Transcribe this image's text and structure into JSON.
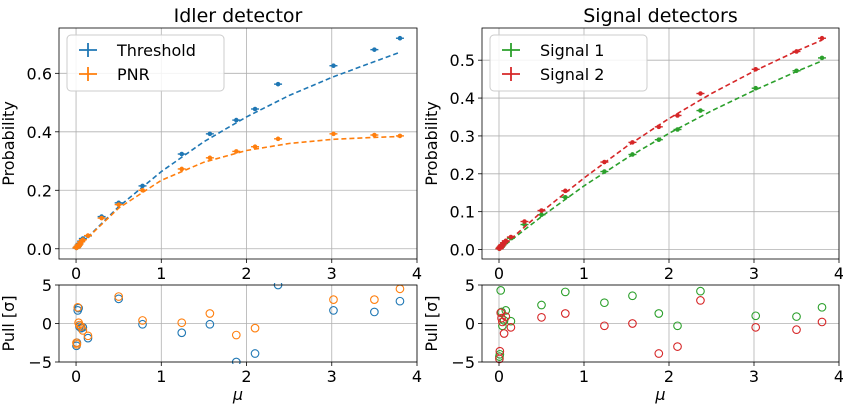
{
  "chart_data": [
    {
      "type": "scatter",
      "panel": "main",
      "title": "Idler detector",
      "xlabel": "",
      "ylabel": "Probability",
      "xlim": [
        -0.2,
        4.0
      ],
      "ylim": [
        -0.035,
        0.755
      ],
      "xticks": [
        0,
        1,
        2,
        3,
        4
      ],
      "yticks": [
        0.0,
        0.2,
        0.4,
        0.6
      ],
      "ytick_labels": [
        "0.0",
        "0.2",
        "0.4",
        "0.6"
      ],
      "grid": true,
      "legend_position": "top-left",
      "series": [
        {
          "name": "Threshold",
          "color": "#1f77b4",
          "x": [
            0.005,
            0.01,
            0.02,
            0.03,
            0.04,
            0.06,
            0.08,
            0.14,
            0.3,
            0.5,
            0.78,
            1.24,
            1.57,
            1.88,
            2.1,
            2.37,
            3.02,
            3.5,
            3.8
          ],
          "y": [
            0.003,
            0.005,
            0.008,
            0.013,
            0.018,
            0.026,
            0.035,
            0.044,
            0.11,
            0.157,
            0.215,
            0.324,
            0.393,
            0.44,
            0.478,
            0.563,
            0.626,
            0.681,
            0.72
          ],
          "fit": [
            [
              0,
              0
            ],
            [
              0.5,
              0.144
            ],
            [
              1,
              0.264
            ],
            [
              1.5,
              0.366
            ],
            [
              2,
              0.451
            ],
            [
              2.5,
              0.524
            ],
            [
              3,
              0.586
            ],
            [
              3.5,
              0.64
            ],
            [
              3.8,
              0.672
            ]
          ]
        },
        {
          "name": "PNR",
          "color": "#ff7f0e",
          "x": [
            0.005,
            0.01,
            0.02,
            0.03,
            0.04,
            0.06,
            0.08,
            0.14,
            0.3,
            0.5,
            0.78,
            1.24,
            1.57,
            1.88,
            2.1,
            2.37,
            3.02,
            3.5,
            3.8
          ],
          "y": [
            0.003,
            0.005,
            0.008,
            0.012,
            0.016,
            0.024,
            0.031,
            0.045,
            0.105,
            0.151,
            0.2,
            0.273,
            0.311,
            0.333,
            0.349,
            0.376,
            0.393,
            0.389,
            0.386
          ],
          "fit": [
            [
              0,
              0
            ],
            [
              0.5,
              0.139
            ],
            [
              1,
              0.234
            ],
            [
              1.5,
              0.296
            ],
            [
              2,
              0.336
            ],
            [
              2.5,
              0.36
            ],
            [
              3,
              0.374
            ],
            [
              3.5,
              0.381
            ],
            [
              3.8,
              0.384
            ]
          ]
        }
      ]
    },
    {
      "type": "scatter",
      "panel": "main",
      "title": "Signal detectors",
      "xlabel": "",
      "ylabel": "Probability",
      "xlim": [
        -0.2,
        4.0
      ],
      "ylim": [
        -0.025,
        0.585
      ],
      "xticks": [
        0,
        1,
        2,
        3,
        4
      ],
      "yticks": [
        0.0,
        0.1,
        0.2,
        0.3,
        0.4,
        0.5
      ],
      "ytick_labels": [
        "0.0",
        "0.1",
        "0.2",
        "0.3",
        "0.4",
        "0.5"
      ],
      "grid": true,
      "legend_position": "top-left",
      "series": [
        {
          "name": "Signal 1",
          "color": "#2ca02c",
          "x": [
            0.005,
            0.01,
            0.02,
            0.03,
            0.04,
            0.06,
            0.08,
            0.14,
            0.3,
            0.5,
            0.78,
            1.24,
            1.57,
            1.88,
            2.1,
            2.37,
            3.02,
            3.5,
            3.8
          ],
          "y": [
            0.002,
            0.004,
            0.006,
            0.009,
            0.012,
            0.016,
            0.02,
            0.03,
            0.066,
            0.092,
            0.138,
            0.206,
            0.251,
            0.29,
            0.317,
            0.367,
            0.426,
            0.472,
            0.506
          ],
          "fit": [
            [
              0,
              0
            ],
            [
              0.5,
              0.087
            ],
            [
              1,
              0.168
            ],
            [
              1.5,
              0.241
            ],
            [
              2,
              0.307
            ],
            [
              2.5,
              0.366
            ],
            [
              3,
              0.42
            ],
            [
              3.5,
              0.47
            ],
            [
              3.8,
              0.498
            ]
          ]
        },
        {
          "name": "Signal 2",
          "color": "#d62728",
          "x": [
            0.005,
            0.01,
            0.02,
            0.03,
            0.04,
            0.06,
            0.08,
            0.14,
            0.3,
            0.5,
            0.78,
            1.24,
            1.57,
            1.88,
            2.1,
            2.37,
            3.02,
            3.5,
            3.8
          ],
          "y": [
            0.002,
            0.004,
            0.007,
            0.01,
            0.013,
            0.018,
            0.023,
            0.033,
            0.074,
            0.103,
            0.155,
            0.231,
            0.283,
            0.324,
            0.354,
            0.412,
            0.476,
            0.523,
            0.558
          ],
          "fit": [
            [
              0,
              0
            ],
            [
              0.5,
              0.099
            ],
            [
              1,
              0.189
            ],
            [
              1.5,
              0.272
            ],
            [
              2,
              0.346
            ],
            [
              2.5,
              0.412
            ],
            [
              3,
              0.471
            ],
            [
              3.5,
              0.524
            ],
            [
              3.8,
              0.553
            ]
          ]
        }
      ]
    },
    {
      "type": "scatter",
      "panel": "residual",
      "title": "",
      "xlabel": "μ",
      "ylabel": "Pull [σ]",
      "xlim": [
        -0.2,
        4.0
      ],
      "ylim": [
        -5,
        5
      ],
      "xticks": [
        0,
        1,
        2,
        3,
        4
      ],
      "yticks": [
        -5,
        0,
        5
      ],
      "ytick_labels": [
        "−5",
        "0",
        "5"
      ],
      "grid": true,
      "series": [
        {
          "name": "Threshold",
          "color": "#1f77b4",
          "x": [
            0.005,
            0.01,
            0.02,
            0.03,
            0.04,
            0.06,
            0.08,
            0.14,
            0.5,
            0.78,
            1.24,
            1.57,
            1.88,
            2.1,
            2.37,
            3.02,
            3.5,
            3.8
          ],
          "y": [
            -2.9,
            -2.5,
            1.7,
            2.0,
            -0.4,
            -0.6,
            -0.5,
            -1.9,
            3.2,
            -0.1,
            -1.2,
            -0.1,
            -5.0,
            -3.9,
            5.0,
            1.7,
            1.5,
            2.9
          ]
        },
        {
          "name": "PNR",
          "color": "#ff7f0e",
          "x": [
            0.005,
            0.01,
            0.02,
            0.03,
            0.04,
            0.06,
            0.08,
            0.14,
            0.5,
            0.78,
            1.24,
            1.57,
            1.88,
            2.1,
            3.02,
            3.5,
            3.8
          ],
          "y": [
            -2.5,
            -2.7,
            2.1,
            0.1,
            -0.2,
            -0.4,
            -0.9,
            -1.6,
            3.5,
            0.4,
            0.1,
            1.3,
            -1.5,
            -0.6,
            3.1,
            3.1,
            4.5
          ]
        }
      ]
    },
    {
      "type": "scatter",
      "panel": "residual",
      "title": "",
      "xlabel": "μ",
      "ylabel": "Pull [σ]",
      "xlim": [
        -0.2,
        4.0
      ],
      "ylim": [
        -5,
        5
      ],
      "xticks": [
        0,
        1,
        2,
        3,
        4
      ],
      "yticks": [
        -5,
        0,
        5
      ],
      "ytick_labels": [
        "−5",
        "0",
        "5"
      ],
      "grid": true,
      "series": [
        {
          "name": "Signal 1",
          "color": "#2ca02c",
          "x": [
            0.005,
            0.01,
            0.02,
            0.03,
            0.04,
            0.06,
            0.08,
            0.14,
            0.5,
            0.78,
            1.24,
            1.57,
            1.88,
            2.1,
            2.37,
            3.02,
            3.5,
            3.8
          ],
          "y": [
            -4.3,
            -4.0,
            4.3,
            1.5,
            -0.3,
            0.4,
            1.7,
            0.3,
            2.4,
            4.1,
            2.7,
            3.6,
            1.3,
            -0.3,
            4.2,
            1.0,
            0.9,
            2.1
          ]
        },
        {
          "name": "Signal 2",
          "color": "#d62728",
          "x": [
            0.005,
            0.01,
            0.02,
            0.03,
            0.04,
            0.06,
            0.08,
            0.14,
            0.5,
            0.78,
            1.24,
            1.57,
            1.88,
            2.1,
            2.37,
            3.02,
            3.5,
            3.8
          ],
          "y": [
            -4.6,
            -3.6,
            1.4,
            0.7,
            0.2,
            -1.3,
            0.9,
            -0.5,
            0.8,
            1.3,
            -0.3,
            0.0,
            -3.9,
            -3.0,
            3.0,
            -0.5,
            -0.8,
            0.2
          ]
        }
      ]
    }
  ]
}
